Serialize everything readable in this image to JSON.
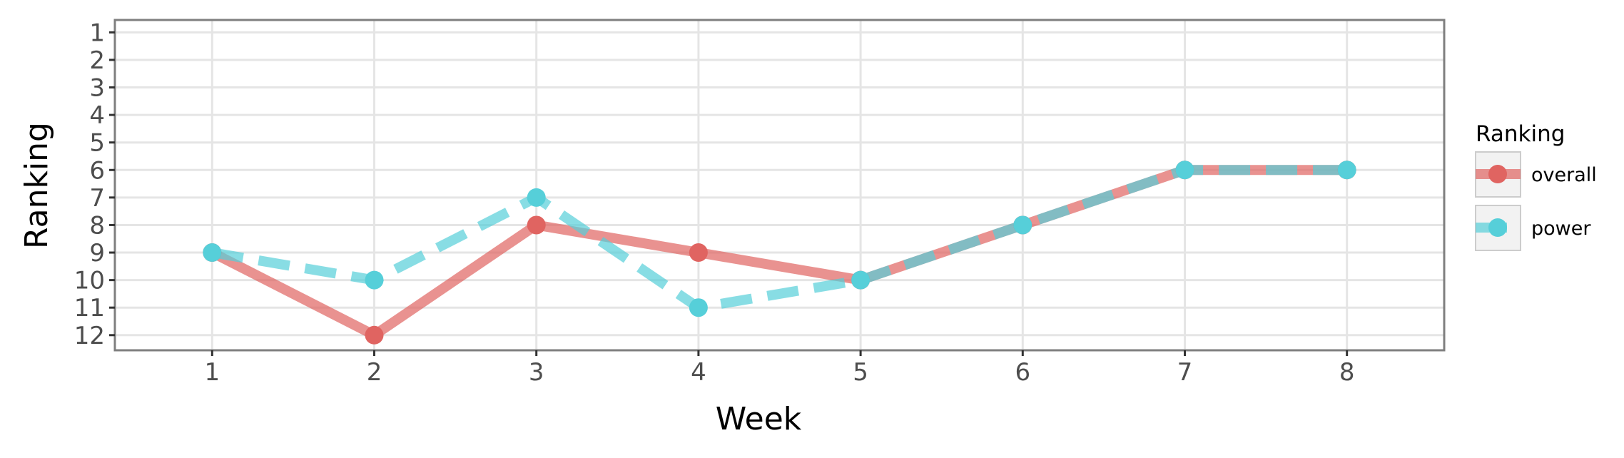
{
  "chart_data": {
    "type": "line",
    "xlabel": "Week",
    "ylabel": "Ranking",
    "x": [
      1,
      2,
      3,
      4,
      5,
      6,
      7,
      8
    ],
    "xlim": [
      0.4,
      8.6
    ],
    "ylim": [
      12.55,
      0.55
    ],
    "y_reversed": true,
    "yticks": [
      1,
      2,
      3,
      4,
      5,
      6,
      7,
      8,
      9,
      10,
      11,
      12
    ],
    "grid": true,
    "legend": {
      "title": "Ranking",
      "position": "right"
    },
    "series": [
      {
        "name": "overall",
        "color": "#e06461",
        "line_style": "solid",
        "values": [
          9,
          12,
          8,
          9,
          10,
          8,
          6,
          6
        ]
      },
      {
        "name": "power",
        "color": "#56cfd9",
        "line_style": "dashed",
        "values": [
          9,
          10,
          7,
          11,
          10,
          8,
          6,
          6
        ]
      }
    ]
  }
}
